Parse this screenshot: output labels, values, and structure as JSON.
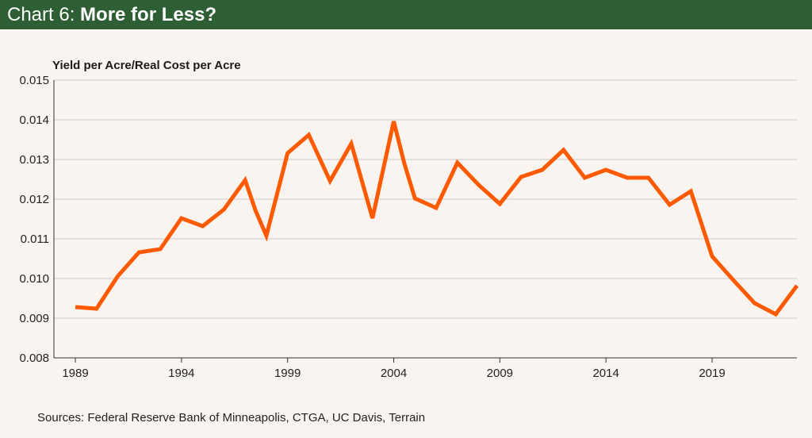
{
  "header": {
    "prefix": "Chart 6:",
    "title": "More for Less?"
  },
  "colors": {
    "header": "#2e5e33",
    "line": "#ff5a00",
    "grid": "#dcd8d5"
  },
  "chart_data": {
    "type": "line",
    "title": "More for Less?",
    "ylabel": "Yield per Acre/Real Cost per Acre",
    "xlabel": "",
    "ylim": [
      0.008,
      0.015
    ],
    "xlim": [
      1989,
      2023
    ],
    "yticks": [
      "0.008",
      "0.009",
      "0.010",
      "0.011",
      "0.012",
      "0.013",
      "0.014",
      "0.015"
    ],
    "xticks": [
      "1989",
      "1994",
      "1999",
      "2004",
      "2009",
      "2014",
      "2019"
    ],
    "grid": true,
    "series": [
      {
        "name": "Yield per Acre/Real Cost per Acre",
        "x": [
          1989,
          1990,
          1991,
          1992,
          1993,
          1994,
          1995,
          1996,
          1997,
          1997.5,
          1998,
          1999,
          2000,
          2001,
          2002,
          2003,
          2004,
          2004.5,
          2005,
          2006,
          2007,
          2008,
          2009,
          2010,
          2011,
          2012,
          2013,
          2014,
          2015,
          2016,
          2017,
          2018,
          2019,
          2020,
          2021,
          2022,
          2023
        ],
        "y": [
          0.00928,
          0.00924,
          0.01006,
          0.01066,
          0.01074,
          0.01152,
          0.01132,
          0.01174,
          0.01248,
          0.0117,
          0.01108,
          0.01316,
          0.01362,
          0.01246,
          0.0134,
          0.01152,
          0.01396,
          0.0129,
          0.01202,
          0.01178,
          0.01292,
          0.01236,
          0.01188,
          0.01256,
          0.01274,
          0.01324,
          0.01254,
          0.01274,
          0.01254,
          0.01254,
          0.01186,
          0.0122,
          0.01056,
          0.00996,
          0.00938,
          0.0091,
          0.00982
        ]
      }
    ]
  },
  "source": "Sources: Federal Reserve Bank of Minneapolis, CTGA, UC Davis, Terrain"
}
